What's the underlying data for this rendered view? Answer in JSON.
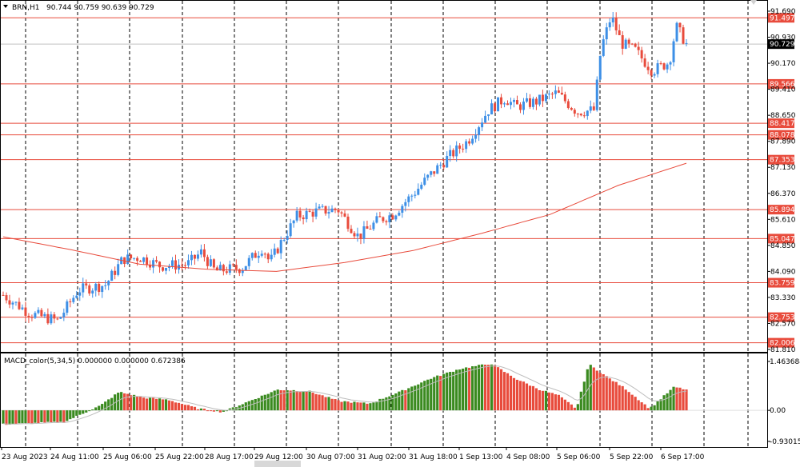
{
  "header": {
    "symbol": "BRN,H1",
    "ohlc": "90.744 90.759 90.639 90.729",
    "macd_label": "MACD_color(5,34,5) 0.000000 0.000000 0.672386"
  },
  "colors": {
    "bull": "#3d8fe6",
    "bear": "#e84b3c",
    "level": "#e84b3c",
    "ma": "#e84b3c",
    "macd_up": "#3a8a1f",
    "macd_down": "#e84b3c",
    "signal": "#bdbdbd",
    "grid": "#000000"
  },
  "chart_data": [
    {
      "type": "candlestick",
      "symbol": "BRN",
      "timeframe": "H1",
      "ylim": [
        81.81,
        91.69
      ],
      "price_ticks": [
        "91.690",
        "90.930",
        "90.170",
        "89.410",
        "88.650",
        "87.890",
        "87.130",
        "86.370",
        "85.610",
        "84.850",
        "84.090",
        "83.330",
        "82.570",
        "81.810"
      ],
      "current_price": "90.729",
      "x_labels": [
        "23 Aug 2023",
        "24 Aug 11:00",
        "25 Aug 06:00",
        "25 Aug 22:00",
        "28 Aug 17:00",
        "29 Aug 12:00",
        "30 Aug 07:00",
        "31 Aug 02:00",
        "31 Aug 18:00",
        "1 Sep 13:00",
        "4 Sep 08:00",
        "5 Sep 06:00",
        "5 Sep 22:00",
        "6 Sep 17:00"
      ],
      "levels": [
        "91.497",
        "89.566",
        "88.417",
        "88.078",
        "87.353",
        "85.894",
        "85.047",
        "83.759",
        "82.753",
        "82.006"
      ],
      "ma_anchors": [
        [
          0,
          85.1
        ],
        [
          0.1,
          84.72
        ],
        [
          0.2,
          84.3
        ],
        [
          0.3,
          84.15
        ],
        [
          0.4,
          84.09
        ],
        [
          0.5,
          84.35
        ],
        [
          0.6,
          84.7
        ],
        [
          0.7,
          85.2
        ],
        [
          0.8,
          85.75
        ],
        [
          0.9,
          86.6
        ],
        [
          1.0,
          87.25
        ]
      ],
      "path_anchors": [
        [
          0,
          83.4
        ],
        [
          0.04,
          82.85
        ],
        [
          0.08,
          82.65
        ],
        [
          0.11,
          83.55
        ],
        [
          0.15,
          83.7
        ],
        [
          0.175,
          84.45
        ],
        [
          0.2,
          84.5
        ],
        [
          0.23,
          84.25
        ],
        [
          0.27,
          84.3
        ],
        [
          0.29,
          84.65
        ],
        [
          0.31,
          84.1
        ],
        [
          0.35,
          84.2
        ],
        [
          0.38,
          84.8
        ],
        [
          0.39,
          84.35
        ],
        [
          0.41,
          85.05
        ],
        [
          0.43,
          85.7
        ],
        [
          0.46,
          85.85
        ],
        [
          0.49,
          85.9
        ],
        [
          0.52,
          85.1
        ],
        [
          0.55,
          85.6
        ],
        [
          0.57,
          85.75
        ],
        [
          0.6,
          86.35
        ],
        [
          0.62,
          86.8
        ],
        [
          0.65,
          87.4
        ],
        [
          0.68,
          87.9
        ],
        [
          0.71,
          88.8
        ],
        [
          0.735,
          89.15
        ],
        [
          0.75,
          88.9
        ],
        [
          0.78,
          89.05
        ],
        [
          0.81,
          89.3
        ],
        [
          0.84,
          88.75
        ],
        [
          0.865,
          88.8
        ],
        [
          0.875,
          90.6
        ],
        [
          0.89,
          91.55
        ],
        [
          0.905,
          90.75
        ],
        [
          0.925,
          90.55
        ],
        [
          0.95,
          89.95
        ],
        [
          0.975,
          90.2
        ],
        [
          0.985,
          91.25
        ],
        [
          1.0,
          90.73
        ]
      ]
    },
    {
      "type": "histogram",
      "title": "MACD_color(5,34,5)",
      "y_ticks": [
        "1.463684",
        "0.00",
        "-0.930153"
      ],
      "ylim": [
        -0.930153,
        1.463684
      ],
      "anchors": [
        [
          0,
          -0.42
        ],
        [
          0.1,
          -0.35
        ],
        [
          0.16,
          0.15
        ],
        [
          0.19,
          0.55
        ],
        [
          0.23,
          0.38
        ],
        [
          0.27,
          0.32
        ],
        [
          0.32,
          0.05
        ],
        [
          0.36,
          -0.05
        ],
        [
          0.4,
          0.25
        ],
        [
          0.45,
          0.62
        ],
        [
          0.5,
          0.58
        ],
        [
          0.55,
          0.28
        ],
        [
          0.6,
          0.2
        ],
        [
          0.65,
          0.55
        ],
        [
          0.7,
          0.95
        ],
        [
          0.75,
          1.25
        ],
        [
          0.8,
          1.4
        ],
        [
          0.84,
          0.95
        ],
        [
          0.88,
          0.62
        ],
        [
          0.91,
          0.45
        ],
        [
          0.94,
          0.05
        ],
        [
          0.96,
          1.38
        ],
        [
          0.99,
          1.0
        ],
        [
          1.02,
          0.65
        ],
        [
          1.06,
          0.05
        ],
        [
          1.1,
          0.7
        ],
        [
          1.12,
          0.62
        ]
      ]
    }
  ]
}
